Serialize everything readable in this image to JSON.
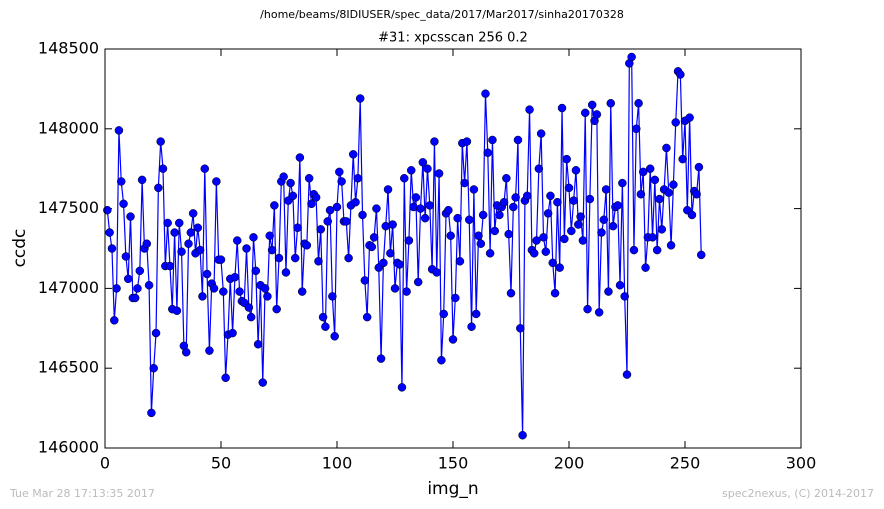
{
  "chart_data": {
    "type": "line",
    "suptitle": "/home/beams/8IDIUSER/spec_data/2017/Mar2017/sinha20170328",
    "title": "#31: xpcsscan 256 0.2",
    "x_label": "img_n",
    "y_label": "ccdc",
    "footer_left": "Tue Mar 28 17:13:35 2017",
    "footer_right": "spec2nexus, (C) 2014-2017",
    "xlim": [
      0,
      300
    ],
    "xticks": [
      0,
      50,
      100,
      150,
      200,
      250,
      300
    ],
    "ylim": [
      146000,
      148500
    ],
    "yticks": [
      146000,
      146500,
      147000,
      147500,
      148000,
      148500
    ],
    "x": [
      1,
      2,
      3,
      4,
      5,
      6,
      7,
      8,
      9,
      10,
      11,
      12,
      13,
      14,
      15,
      16,
      17,
      18,
      19,
      20,
      21,
      22,
      23,
      24,
      25,
      26,
      27,
      28,
      29,
      30,
      31,
      32,
      33,
      34,
      35,
      36,
      37,
      38,
      39,
      40,
      41,
      42,
      43,
      44,
      45,
      46,
      47,
      48,
      49,
      50,
      51,
      52,
      53,
      54,
      55,
      56,
      57,
      58,
      59,
      60,
      61,
      62,
      63,
      64,
      65,
      66,
      67,
      68,
      69,
      70,
      71,
      72,
      73,
      74,
      75,
      76,
      77,
      78,
      79,
      80,
      81,
      82,
      83,
      84,
      85,
      86,
      87,
      88,
      89,
      90,
      91,
      92,
      93,
      94,
      95,
      96,
      97,
      98,
      99,
      100,
      101,
      102,
      103,
      104,
      105,
      106,
      107,
      108,
      109,
      110,
      111,
      112,
      113,
      114,
      115,
      116,
      117,
      118,
      119,
      120,
      121,
      122,
      123,
      124,
      125,
      126,
      127,
      128,
      129,
      130,
      131,
      132,
      133,
      134,
      135,
      136,
      137,
      138,
      139,
      140,
      141,
      142,
      143,
      144,
      145,
      146,
      147,
      148,
      149,
      150,
      151,
      152,
      153,
      154,
      155,
      156,
      157,
      158,
      159,
      160,
      161,
      162,
      163,
      164,
      165,
      166,
      167,
      168,
      169,
      170,
      171,
      172,
      173,
      174,
      175,
      176,
      177,
      178,
      179,
      180,
      181,
      182,
      183,
      184,
      185,
      186,
      187,
      188,
      189,
      190,
      191,
      192,
      193,
      194,
      195,
      196,
      197,
      198,
      199,
      200,
      201,
      202,
      203,
      204,
      205,
      206,
      207,
      208,
      209,
      210,
      211,
      212,
      213,
      214,
      215,
      216,
      217,
      218,
      219,
      220,
      221,
      222,
      223,
      224,
      225,
      226,
      227,
      228,
      229,
      230,
      231,
      232,
      233,
      234,
      235,
      236,
      237,
      238,
      239,
      240,
      241,
      242,
      243,
      244,
      245,
      246,
      247,
      248,
      249,
      250,
      251,
      252,
      253,
      254,
      255,
      256,
      257
    ],
    "series": [
      {
        "color": "#0000ff",
        "values": [
          147490,
          147350,
          147250,
          146800,
          147000,
          147990,
          147670,
          147530,
          147200,
          147060,
          147450,
          146940,
          146940,
          147000,
          147110,
          147680,
          147250,
          147280,
          147020,
          146220,
          146500,
          146720,
          147630,
          147920,
          147750,
          147140,
          147410,
          147140,
          146870,
          147350,
          146860,
          147410,
          147230,
          146640,
          146600,
          147280,
          147350,
          147470,
          147220,
          147380,
          147240,
          146950,
          147750,
          147090,
          146610,
          147030,
          147000,
          147670,
          147180,
          147180,
          146980,
          146440,
          146710,
          147060,
          146720,
          147070,
          147300,
          146980,
          146920,
          146910,
          147250,
          146880,
          146820,
          147320,
          147110,
          146650,
          147020,
          146410,
          147000,
          146950,
          147330,
          147240,
          147520,
          146870,
          147190,
          147670,
          147700,
          147100,
          147550,
          147660,
          147580,
          147190,
          147380,
          147820,
          146980,
          147280,
          147270,
          147690,
          147530,
          147590,
          147570,
          147170,
          147370,
          146820,
          146760,
          147420,
          147490,
          146950,
          146700,
          147510,
          147730,
          147670,
          147420,
          147420,
          147190,
          147520,
          147840,
          147540,
          147690,
          148190,
          147460,
          147050,
          146820,
          147270,
          147260,
          147320,
          147500,
          147130,
          146560,
          147160,
          147390,
          147620,
          147220,
          147400,
          147000,
          147160,
          147150,
          146380,
          147690,
          146980,
          147300,
          147740,
          147510,
          147570,
          147040,
          147500,
          147790,
          147440,
          147750,
          147520,
          147120,
          147920,
          147100,
          147720,
          146550,
          146840,
          147470,
          147490,
          147330,
          146680,
          146940,
          147440,
          147170,
          147910,
          147660,
          147920,
          147430,
          146760,
          147620,
          146840,
          147330,
          147280,
          147460,
          148220,
          147850,
          147220,
          147930,
          147360,
          147520,
          147460,
          147510,
          147540,
          147690,
          147340,
          146970,
          147510,
          147570,
          147930,
          146750,
          146080,
          147550,
          147580,
          148120,
          147240,
          147220,
          147300,
          147750,
          147970,
          147320,
          147230,
          147470,
          147580,
          147160,
          146970,
          147540,
          147130,
          148130,
          147310,
          147810,
          147630,
          147360,
          147550,
          147740,
          147400,
          147450,
          147300,
          148100,
          146870,
          147560,
          148150,
          148050,
          148090,
          146850,
          147350,
          147430,
          147620,
          146980,
          148160,
          147390,
          147510,
          147520,
          147020,
          147660,
          146950,
          146460,
          148410,
          148450,
          147240,
          148000,
          148160,
          147590,
          147730,
          147130,
          147320,
          147750,
          147320,
          147680,
          147240,
          147560,
          147370,
          147620,
          147880,
          147600,
          147270,
          147650,
          148040,
          148360,
          148340,
          147810,
          148050,
          147490,
          148070,
          147460,
          147610,
          147590,
          147760,
          147210
        ]
      }
    ]
  }
}
